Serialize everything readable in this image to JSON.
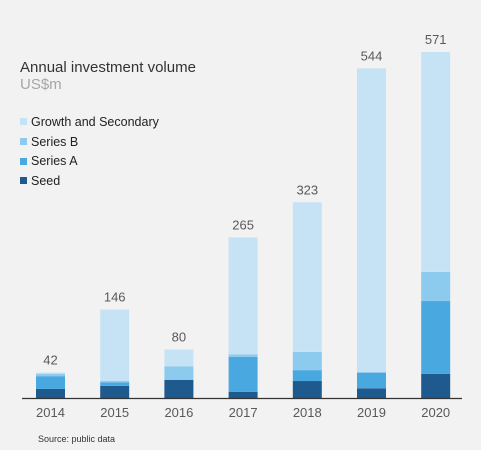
{
  "chart_data": {
    "type": "bar",
    "stacked": true,
    "title": "Annual investment volume",
    "subtitle": "US$m",
    "categories": [
      "2014",
      "2015",
      "2016",
      "2017",
      "2018",
      "2019",
      "2020"
    ],
    "totals": [
      42,
      146,
      80,
      265,
      323,
      544,
      571
    ],
    "series": [
      {
        "name": "Seed",
        "color": "#1f5a8e",
        "values": [
          15,
          20,
          30,
          10,
          28,
          16,
          40
        ]
      },
      {
        "name": "Series A",
        "color": "#4aa8e0",
        "values": [
          21,
          6,
          0,
          58,
          18,
          26,
          120
        ]
      },
      {
        "name": "Series B",
        "color": "#8ccaee",
        "values": [
          4,
          2,
          22,
          4,
          30,
          0,
          48
        ]
      },
      {
        "name": "Growth and Secondary",
        "color": "#c6e3f6",
        "values": [
          2,
          118,
          28,
          193,
          247,
          502,
          363
        ]
      }
    ],
    "ylim": [
      0,
      571
    ],
    "grid": false,
    "legend_position": "top-left"
  },
  "source": "Source: public data"
}
